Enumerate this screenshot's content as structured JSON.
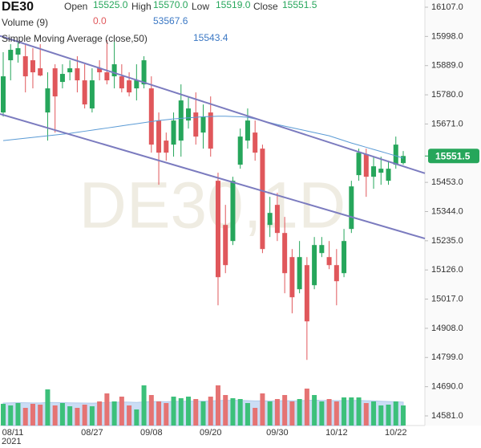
{
  "chart_data": {
    "type": "candlestick",
    "symbol": "DE30",
    "watermark": "DE30,1D",
    "header": {
      "open_label": "Open",
      "open_value": "15525.0",
      "high_label": "High",
      "high_value": "15570.0",
      "low_label": "Low",
      "low_value": "15519.0",
      "close_label": "Close",
      "close_value": "15551.5",
      "volume_label": "Volume (9)",
      "volume_value_1": "0.0",
      "volume_value_2": "53567.6",
      "sma_label": "Simple Moving Average (close,50)",
      "sma_value": "15543.4"
    },
    "last_price_label": "15551.5",
    "categories": [
      "08/11",
      null,
      null,
      null,
      null,
      null,
      null,
      null,
      null,
      null,
      null,
      null,
      "08/27",
      null,
      null,
      null,
      null,
      null,
      null,
      null,
      "09/08",
      null,
      null,
      null,
      null,
      null,
      null,
      null,
      "09/20",
      null,
      null,
      null,
      null,
      null,
      null,
      null,
      null,
      "09/30",
      null,
      null,
      null,
      null,
      null,
      null,
      null,
      "10/12",
      null,
      null,
      null,
      null,
      null,
      null,
      null,
      "10/22",
      null
    ],
    "x_year_label": "2021",
    "open": [
      15714,
      15909,
      15930,
      15924,
      15909,
      15879,
      15714,
      15879,
      15828,
      15864,
      15879,
      15834,
      15729,
      15879,
      15864,
      15849,
      15849,
      15834,
      15804,
      15819,
      15804,
      15684,
      15609,
      15594,
      15609,
      15684,
      15714,
      15639,
      15714,
      15459,
      15294,
      15234,
      15519,
      15609,
      15639,
      15579,
      15294,
      15369,
      15264,
      15174,
      15054,
      15144,
      15069,
      15189,
      15174,
      15144,
      15114,
      15279,
      15480,
      15558,
      15474,
      15489,
      15459,
      15519,
      15525
    ],
    "high": [
      15939,
      15969,
      15975,
      15969,
      15954,
      15969,
      15864,
      15894,
      15894,
      15909,
      15924,
      15894,
      15879,
      15909,
      15984,
      15984,
      15894,
      15864,
      15894,
      15924,
      15849,
      15714,
      15639,
      15714,
      15819,
      15774,
      15789,
      15744,
      15774,
      15489,
      15369,
      15474,
      15654,
      15729,
      15684,
      15594,
      15399,
      15414,
      15324,
      15204,
      15234,
      15174,
      15249,
      15249,
      15234,
      15204,
      15279,
      15459,
      15579,
      15579,
      15549,
      15549,
      15534,
      15624,
      15570
    ],
    "low": [
      15699,
      15834,
      15900,
      15789,
      15804,
      15849,
      15609,
      15639,
      15804,
      15834,
      15789,
      15729,
      15714,
      15834,
      15819,
      15804,
      15789,
      15774,
      15759,
      15804,
      15564,
      15444,
      15534,
      15549,
      15549,
      15654,
      15594,
      15579,
      15549,
      14994,
      15114,
      15219,
      15504,
      15579,
      15534,
      15189,
      15249,
      15234,
      15039,
      14964,
      15039,
      14790,
      15054,
      15174,
      15129,
      14994,
      15099,
      15264,
      15459,
      15399,
      15429,
      15444,
      15444,
      15504,
      15519
    ],
    "close": [
      15849,
      15948,
      15954,
      15849,
      15864,
      15852,
      15804,
      15774,
      15858,
      15879,
      15834,
      15744,
      15834,
      15864,
      15834,
      15894,
      15804,
      15789,
      15834,
      15909,
      15594,
      15564,
      15564,
      15684,
      15759,
      15729,
      15624,
      15699,
      15579,
      15099,
      15144,
      15459,
      15624,
      15684,
      15564,
      15204,
      15339,
      15264,
      15114,
      15024,
      15174,
      14934,
      15219,
      15219,
      15144,
      15084,
      15234,
      15438,
      15564,
      15474,
      15513,
      15504,
      15504,
      15594,
      15551.5
    ],
    "up_color": "#26a65b",
    "down_color": "#e0575b",
    "sma": {
      "name": "Simple Moving Average (close,50)",
      "color": "#5b9bd5",
      "values": [
        15609,
        15612,
        15615,
        15618,
        15621,
        15624,
        15627,
        15630,
        15633,
        15636,
        15640,
        15644,
        15648,
        15652,
        15656,
        15660,
        15664,
        15668,
        15672,
        15676,
        15680,
        15684,
        15687,
        15690,
        15692,
        15694,
        15696,
        15698,
        15699,
        15700,
        15700,
        15699,
        15698,
        15696,
        15690,
        15683,
        15676,
        15669,
        15663,
        15657,
        15651,
        15645,
        15639,
        15633,
        15627,
        15618,
        15609,
        15600,
        15592,
        15584,
        15576,
        15568,
        15560,
        15552,
        15543.4
      ]
    },
    "volume": {
      "name": "Volume (9)",
      "up_color": "#3cc07a",
      "down_color": "#e57373",
      "values": [
        57900,
        53600,
        60000,
        47100,
        57900,
        55700,
        96400,
        53600,
        60000,
        51400,
        47100,
        55700,
        51400,
        64300,
        85700,
        64300,
        77100,
        53600,
        42900,
        107200,
        81400,
        64300,
        60000,
        77100,
        72900,
        77100,
        70700,
        64300,
        77100,
        107200,
        81400,
        72900,
        70700,
        60000,
        47100,
        85700,
        64300,
        70700,
        81400,
        64300,
        70700,
        98600,
        81400,
        64300,
        70700,
        64300,
        75000,
        75000,
        75000,
        60000,
        64300,
        53600,
        55700,
        64300,
        53567.6
      ],
      "ma_color": "#a9c8ef",
      "ma_values": [
        60000,
        60500,
        61000,
        60800,
        60400,
        60200,
        61500,
        61300,
        61000,
        60600,
        60200,
        60000,
        59700,
        60300,
        61800,
        62000,
        62600,
        62300,
        61500,
        63000,
        63800,
        64000,
        63600,
        64200,
        64600,
        65000,
        65200,
        65000,
        65400,
        66600,
        67000,
        67200,
        67000,
        66500,
        65600,
        66000,
        65700,
        65800,
        66200,
        66000,
        66100,
        67200,
        67600,
        67000,
        66800,
        66300,
        66500,
        66700,
        66900,
        66200,
        65800,
        64800,
        64000,
        63500,
        62400
      ],
      "ylim": [
        0,
        120000
      ]
    },
    "trend_lines": {
      "color": "#7b7bbf",
      "upper": [
        15996,
        15513
      ],
      "lower": [
        15705,
        15267
      ]
    },
    "ylim": [
      14545,
      16134
    ],
    "yticks": [
      {
        "value": 14581,
        "label": "14581.0"
      },
      {
        "value": 14690,
        "label": "14690.0"
      },
      {
        "value": 14799,
        "label": "14799.0"
      },
      {
        "value": 14908,
        "label": "14908.0"
      },
      {
        "value": 15017,
        "label": "15017.0"
      },
      {
        "value": 15126,
        "label": "15126.0"
      },
      {
        "value": 15235,
        "label": "15235.0"
      },
      {
        "value": 15344,
        "label": "15344.0"
      },
      {
        "value": 15453,
        "label": "15453.0"
      },
      {
        "value": 15671,
        "label": "15671.0"
      },
      {
        "value": 15780,
        "label": "15780.0"
      },
      {
        "value": 15889,
        "label": "15889.0"
      },
      {
        "value": 15998,
        "label": "15998.0"
      },
      {
        "value": 16107,
        "label": "16107.0"
      }
    ]
  }
}
